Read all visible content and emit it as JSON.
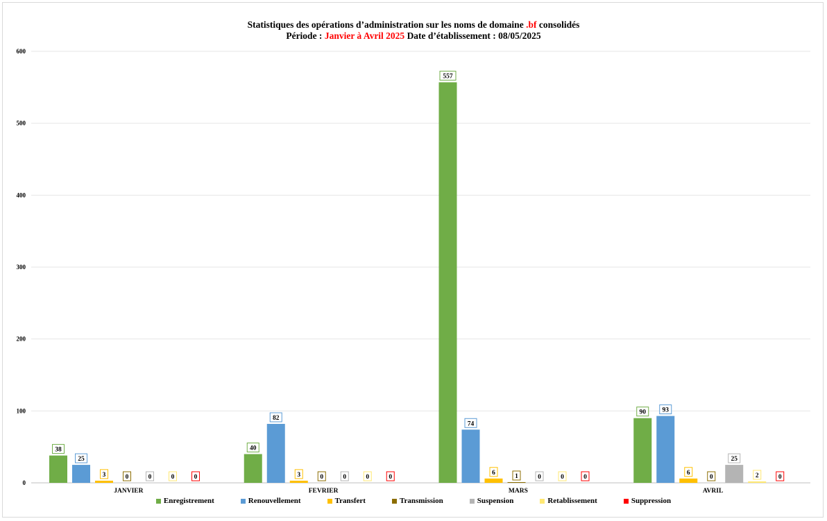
{
  "title": {
    "line1_pre": "Statistiques des opérations d’administration sur les noms de domaine ",
    "line1_red": ".bf",
    "line1_post": " consolidés",
    "line2_pre": "Période : ",
    "line2_red": "Janvier à Avril 2025",
    "line2_post": " Date d’établissement : 08/05/2025"
  },
  "colors": {
    "title_highlight": "#ff0000",
    "gridline": "#e6e6e6",
    "axis": "#bfbfbf"
  },
  "chart_data": {
    "type": "bar",
    "categories": [
      "JANVIER",
      "FEVRIER",
      "MARS",
      "AVRIL"
    ],
    "ylim": [
      0,
      600
    ],
    "yticks": [
      0,
      100,
      200,
      300,
      400,
      500,
      600
    ],
    "grid": true,
    "legend_position": "bottom",
    "series": [
      {
        "name": "Enregistrement",
        "color": "#70ad47",
        "values": [
          38,
          40,
          557,
          90
        ]
      },
      {
        "name": "Renouvellement",
        "color": "#5b9bd5",
        "values": [
          25,
          82,
          74,
          93
        ]
      },
      {
        "name": "Transfert",
        "color": "#ffc000",
        "values": [
          3,
          3,
          6,
          6
        ]
      },
      {
        "name": "Transmission",
        "color": "#8c6d00",
        "values": [
          0,
          0,
          1,
          0
        ]
      },
      {
        "name": "Suspension",
        "color": "#b4b4b4",
        "values": [
          0,
          0,
          0,
          25
        ]
      },
      {
        "name": "Retablissement",
        "color": "#ffe873",
        "values": [
          0,
          0,
          0,
          2
        ]
      },
      {
        "name": "Suppression",
        "color": "#ff0000",
        "values": [
          0,
          0,
          0,
          0
        ]
      }
    ]
  }
}
